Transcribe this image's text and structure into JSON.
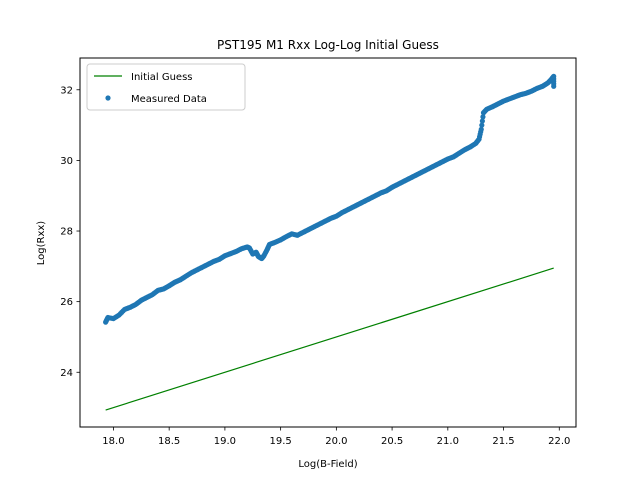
{
  "chart_data": {
    "type": "scatter",
    "title": "PST195 M1 Rxx Log-Log Initial Guess",
    "xlabel": "Log(B-Field)",
    "ylabel": "Log(Rxx)",
    "xlim": [
      17.7,
      22.15
    ],
    "ylim": [
      22.45,
      32.9
    ],
    "xticks": [
      18.0,
      18.5,
      19.0,
      19.5,
      20.0,
      20.5,
      21.0,
      21.5,
      22.0
    ],
    "xtick_labels": [
      "18.0",
      "18.5",
      "19.0",
      "19.5",
      "20.0",
      "20.5",
      "21.0",
      "21.5",
      "22.0"
    ],
    "yticks": [
      24,
      26,
      28,
      30,
      32
    ],
    "ytick_labels": [
      "24",
      "26",
      "28",
      "30",
      "32"
    ],
    "grid": false,
    "legend_position": "top-left",
    "series": [
      {
        "name": "Initial Guess",
        "kind": "line",
        "color": "#008000",
        "x": [
          17.93,
          21.95
        ],
        "y": [
          22.93,
          26.95
        ]
      },
      {
        "name": "Measured Data",
        "kind": "scatter",
        "color": "#1f77b4",
        "x": [
          17.93,
          17.95,
          18.0,
          18.05,
          18.1,
          18.15,
          18.2,
          18.25,
          18.3,
          18.35,
          18.4,
          18.45,
          18.5,
          18.55,
          18.6,
          18.65,
          18.7,
          18.75,
          18.8,
          18.85,
          18.9,
          18.95,
          19.0,
          19.05,
          19.1,
          19.15,
          19.2,
          19.22,
          19.25,
          19.28,
          19.3,
          19.33,
          19.35,
          19.38,
          19.4,
          19.45,
          19.5,
          19.55,
          19.6,
          19.65,
          19.7,
          19.75,
          19.8,
          19.85,
          19.9,
          19.95,
          20.0,
          20.05,
          20.1,
          20.15,
          20.2,
          20.25,
          20.3,
          20.35,
          20.4,
          20.45,
          20.5,
          20.55,
          20.6,
          20.65,
          20.7,
          20.75,
          20.8,
          20.85,
          20.9,
          20.95,
          21.0,
          21.05,
          21.1,
          21.15,
          21.2,
          21.25,
          21.28,
          21.3,
          21.32,
          21.35,
          21.4,
          21.45,
          21.5,
          21.55,
          21.6,
          21.65,
          21.7,
          21.75,
          21.8,
          21.85,
          21.9,
          21.93,
          21.95,
          21.95
        ],
        "y": [
          25.42,
          25.55,
          25.52,
          25.62,
          25.78,
          25.84,
          25.92,
          26.04,
          26.12,
          26.2,
          26.32,
          26.36,
          26.45,
          26.55,
          26.62,
          26.72,
          26.82,
          26.9,
          26.98,
          27.06,
          27.14,
          27.2,
          27.3,
          27.36,
          27.42,
          27.5,
          27.55,
          27.52,
          27.35,
          27.4,
          27.28,
          27.22,
          27.3,
          27.48,
          27.62,
          27.68,
          27.75,
          27.84,
          27.92,
          27.88,
          27.96,
          28.04,
          28.12,
          28.2,
          28.28,
          28.36,
          28.42,
          28.52,
          28.6,
          28.68,
          28.76,
          28.84,
          28.92,
          29.0,
          29.08,
          29.14,
          29.24,
          29.32,
          29.4,
          29.48,
          29.56,
          29.64,
          29.72,
          29.8,
          29.88,
          29.96,
          30.04,
          30.1,
          30.2,
          30.3,
          30.38,
          30.48,
          30.6,
          30.88,
          31.35,
          31.45,
          31.52,
          31.6,
          31.68,
          31.74,
          31.8,
          31.86,
          31.9,
          31.96,
          32.04,
          32.1,
          32.2,
          32.3,
          32.38,
          32.1
        ]
      }
    ]
  }
}
